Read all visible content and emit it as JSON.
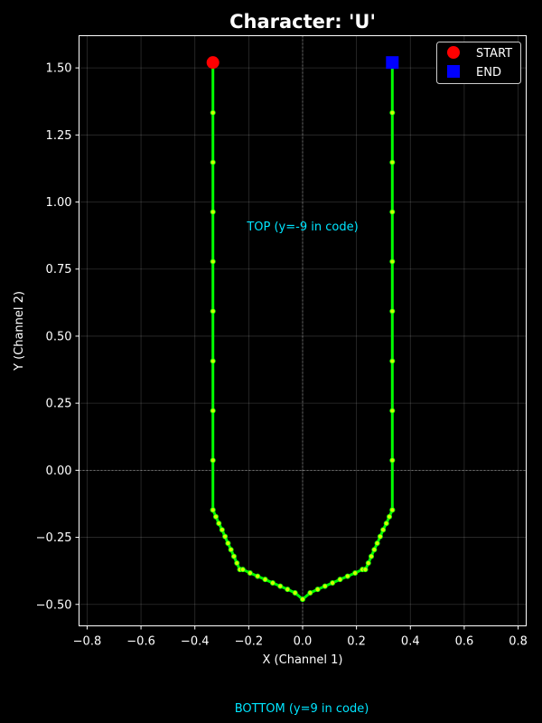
{
  "chart_data": {
    "type": "line",
    "title": "Character: 'U'",
    "xlabel": "X (Channel 1)",
    "ylabel": "Y (Channel 2)",
    "xlim": [
      -0.83,
      0.83
    ],
    "ylim": [
      -0.58,
      1.62
    ],
    "xticks": [
      -0.8,
      -0.6,
      -0.4,
      -0.2,
      0.0,
      0.2,
      0.4,
      0.6,
      0.8
    ],
    "xtick_labels": [
      "−0.8",
      "−0.6",
      "−0.4",
      "−0.2",
      "0.0",
      "0.2",
      "0.4",
      "0.6",
      "0.8"
    ],
    "yticks": [
      -0.5,
      -0.25,
      0.0,
      0.25,
      0.5,
      0.75,
      1.0,
      1.25,
      1.5
    ],
    "ytick_labels": [
      "−0.50",
      "−0.25",
      "0.00",
      "0.25",
      "0.50",
      "0.75",
      "1.00",
      "1.25",
      "1.50"
    ],
    "grid": true,
    "background": "#000000",
    "line_color": "#00ff00",
    "marker_color": "#ccff00",
    "series": [
      {
        "x": [
          -0.333,
          -0.333,
          -0.333,
          -0.333,
          -0.333,
          -0.333,
          -0.333,
          -0.333,
          -0.333,
          -0.333,
          -0.333,
          -0.322,
          -0.311,
          -0.299,
          -0.288,
          -0.277,
          -0.266,
          -0.255,
          -0.244,
          -0.233,
          -0.222,
          -0.195,
          -0.167,
          -0.139,
          -0.111,
          -0.083,
          -0.056,
          -0.028,
          0.0,
          0.028,
          0.056,
          0.083,
          0.111,
          0.139,
          0.167,
          0.195,
          0.222,
          0.233,
          0.244,
          0.255,
          0.266,
          0.277,
          0.288,
          0.299,
          0.311,
          0.322,
          0.333,
          0.333,
          0.333,
          0.333,
          0.333,
          0.333,
          0.333,
          0.333,
          0.333,
          0.333,
          0.333
        ],
        "y": [
          1.52,
          1.333,
          1.148,
          0.963,
          0.778,
          0.593,
          0.407,
          0.222,
          0.037,
          -0.148,
          -0.148,
          -0.173,
          -0.198,
          -0.222,
          -0.247,
          -0.272,
          -0.296,
          -0.321,
          -0.346,
          -0.37,
          -0.37,
          -0.383,
          -0.395,
          -0.407,
          -0.42,
          -0.432,
          -0.444,
          -0.457,
          -0.481,
          -0.457,
          -0.444,
          -0.432,
          -0.42,
          -0.407,
          -0.395,
          -0.383,
          -0.37,
          -0.37,
          -0.346,
          -0.321,
          -0.296,
          -0.272,
          -0.247,
          -0.222,
          -0.198,
          -0.173,
          -0.148,
          -0.148,
          0.037,
          0.222,
          0.407,
          0.593,
          0.778,
          0.963,
          1.148,
          1.333,
          1.52
        ]
      }
    ],
    "start_point": {
      "x": -0.333,
      "y": 1.52,
      "color": "#ff0000"
    },
    "end_point": {
      "x": 0.333,
      "y": 1.52,
      "color": "#0000ff"
    },
    "legend": {
      "position": "top-right",
      "items": [
        {
          "label": "START",
          "marker": "circle",
          "color": "#ff0000"
        },
        {
          "label": "END",
          "marker": "square",
          "color": "#0000ff"
        }
      ]
    },
    "annotations": [
      {
        "text": "TOP (y=-9 in code)",
        "x": 0.0,
        "y": 0.91,
        "color": "#00e5ff"
      }
    ],
    "footer_note": {
      "text": "BOTTOM (y=9 in code)",
      "color": "#00e5ff"
    }
  }
}
